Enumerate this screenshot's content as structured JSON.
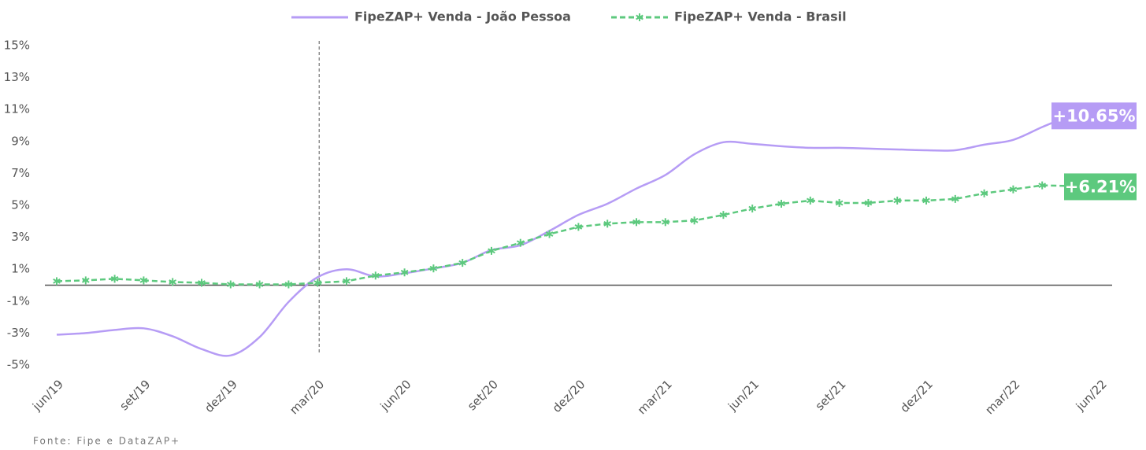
{
  "chart_data": {
    "type": "line",
    "source": "Fonte: Fipe e DataZAP+",
    "categories": [
      "jun/19",
      null,
      null,
      "set/19",
      null,
      null,
      "dez/19",
      null,
      null,
      "mar/20",
      null,
      null,
      "jun/20",
      null,
      null,
      "set/20",
      null,
      null,
      "dez/20",
      null,
      null,
      "mar/21",
      null,
      null,
      "jun/21",
      null,
      null,
      "set/21",
      null,
      null,
      "dez/21",
      null,
      null,
      "mar/22",
      null,
      null,
      "jun/22"
    ],
    "series": [
      {
        "name": "FipeZAP+ Venda - João Pessoa",
        "color": "#b69cf5",
        "values": [
          -3.1,
          -3.0,
          -2.8,
          -2.7,
          -3.2,
          -4.0,
          -4.4,
          -3.25,
          -1.05,
          0.5,
          1.0,
          0.55,
          0.75,
          1.05,
          1.4,
          2.2,
          2.5,
          3.4,
          4.4,
          5.1,
          6.05,
          6.9,
          8.2,
          8.95,
          8.85,
          8.7,
          8.6,
          8.6,
          8.55,
          8.5,
          8.45,
          8.45,
          8.8,
          9.1,
          9.9,
          10.65,
          null
        ],
        "value_labels": [
          null,
          null,
          null,
          null,
          null,
          null,
          null,
          null,
          null,
          null,
          null,
          null,
          null,
          null,
          null,
          null,
          null,
          null,
          null,
          null,
          null,
          null,
          null,
          null,
          null,
          null,
          null,
          null,
          null,
          null,
          null,
          null,
          null,
          null,
          null,
          "+10.65%",
          null
        ]
      },
      {
        "name": "FipeZAP+  Venda - Brasil",
        "color": "#5dc97e",
        "values": [
          0.25,
          0.3,
          0.4,
          0.3,
          0.2,
          0.15,
          0.05,
          0.05,
          0.05,
          0.15,
          0.25,
          0.6,
          0.8,
          1.05,
          1.4,
          2.15,
          2.65,
          3.2,
          3.65,
          3.85,
          3.95,
          3.95,
          4.05,
          4.4,
          4.8,
          5.1,
          5.3,
          5.15,
          5.15,
          5.3,
          5.3,
          5.4,
          5.75,
          6.0,
          6.25,
          6.21,
          null
        ],
        "value_labels": [
          null,
          null,
          null,
          null,
          null,
          null,
          null,
          null,
          null,
          null,
          null,
          null,
          null,
          null,
          null,
          null,
          null,
          null,
          null,
          null,
          null,
          null,
          null,
          null,
          null,
          null,
          null,
          null,
          null,
          null,
          null,
          null,
          null,
          null,
          null,
          "+6.21%",
          null
        ]
      }
    ],
    "ylim": [
      -5,
      15
    ],
    "yticks": [
      {
        "value": -5,
        "label": "-5%"
      },
      {
        "value": -3,
        "label": "-3%"
      },
      {
        "value": -1,
        "label": "-1%"
      },
      {
        "value": 1,
        "label": "1%"
      },
      {
        "value": 3,
        "label": "3%"
      },
      {
        "value": 5,
        "label": "5%"
      },
      {
        "value": 7,
        "label": "7%"
      },
      {
        "value": 9,
        "label": "9%"
      },
      {
        "value": 11,
        "label": "11%"
      },
      {
        "value": 13,
        "label": "13%"
      },
      {
        "value": 15,
        "label": "15%"
      }
    ],
    "legend": "top"
  }
}
